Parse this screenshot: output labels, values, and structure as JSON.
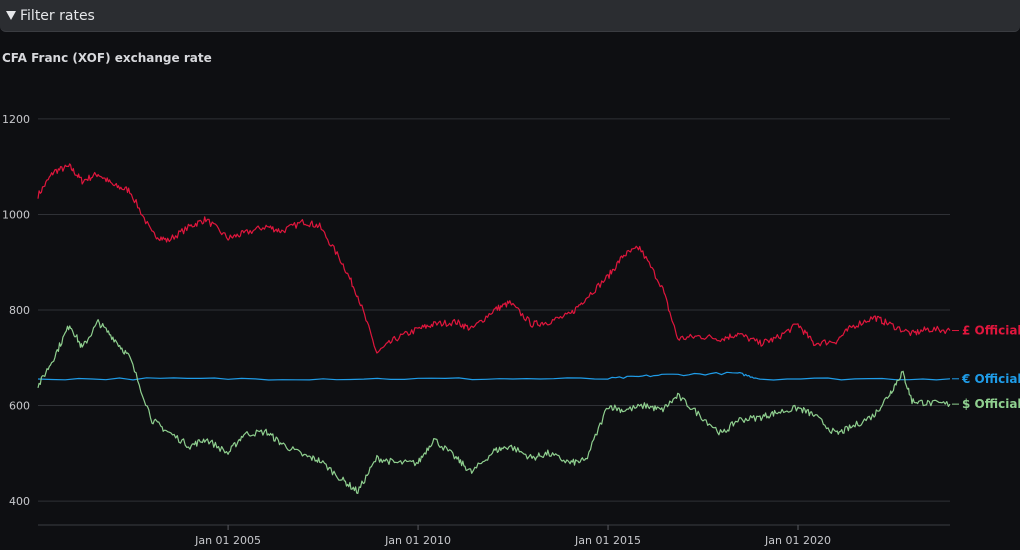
{
  "filter": {
    "label": "Filter rates"
  },
  "chart_data": {
    "type": "line",
    "title": "CFA Franc (XOF) exchange rate",
    "xlabel": "",
    "ylabel": "",
    "xlim": [
      "2000-01-01",
      "2024-01-01"
    ],
    "ylim": [
      350,
      1250
    ],
    "yticks": [
      400,
      600,
      800,
      1000,
      1200
    ],
    "xticks": [
      {
        "date": "2005-01-01",
        "label": "Jan 01 2005"
      },
      {
        "date": "2010-01-01",
        "label": "Jan 01 2010"
      },
      {
        "date": "2015-01-01",
        "label": "Jan 01 2015"
      },
      {
        "date": "2020-01-01",
        "label": "Jan 01 2020"
      }
    ],
    "grid": "horizontal",
    "legend": "end-of-line labels",
    "series": [
      {
        "name": "£ Official",
        "color": "#e0163d",
        "points": [
          [
            "2000-01-01",
            1040
          ],
          [
            "2000-06-01",
            1090
          ],
          [
            "2000-11-01",
            1100
          ],
          [
            "2001-03-01",
            1070
          ],
          [
            "2001-08-01",
            1085
          ],
          [
            "2002-01-01",
            1060
          ],
          [
            "2002-06-01",
            1050
          ],
          [
            "2003-01-01",
            960
          ],
          [
            "2003-06-01",
            945
          ],
          [
            "2004-01-01",
            975
          ],
          [
            "2004-06-01",
            990
          ],
          [
            "2005-01-01",
            950
          ],
          [
            "2005-06-01",
            960
          ],
          [
            "2006-01-01",
            975
          ],
          [
            "2006-06-01",
            965
          ],
          [
            "2007-01-01",
            985
          ],
          [
            "2007-06-01",
            975
          ],
          [
            "2008-01-01",
            900
          ],
          [
            "2008-06-01",
            830
          ],
          [
            "2008-12-01",
            710
          ],
          [
            "2009-06-01",
            740
          ],
          [
            "2010-01-01",
            760
          ],
          [
            "2010-06-01",
            770
          ],
          [
            "2011-01-01",
            775
          ],
          [
            "2011-06-01",
            760
          ],
          [
            "2012-01-01",
            800
          ],
          [
            "2012-06-01",
            815
          ],
          [
            "2013-01-01",
            770
          ],
          [
            "2013-06-01",
            775
          ],
          [
            "2014-01-01",
            790
          ],
          [
            "2014-06-01",
            825
          ],
          [
            "2015-01-01",
            870
          ],
          [
            "2015-06-01",
            915
          ],
          [
            "2015-11-01",
            930
          ],
          [
            "2016-06-01",
            850
          ],
          [
            "2016-11-01",
            740
          ],
          [
            "2017-06-01",
            745
          ],
          [
            "2018-01-01",
            740
          ],
          [
            "2018-06-01",
            750
          ],
          [
            "2019-01-01",
            730
          ],
          [
            "2019-06-01",
            740
          ],
          [
            "2020-01-01",
            770
          ],
          [
            "2020-06-01",
            730
          ],
          [
            "2021-01-01",
            735
          ],
          [
            "2021-06-01",
            765
          ],
          [
            "2022-01-01",
            785
          ],
          [
            "2022-06-01",
            770
          ],
          [
            "2023-01-01",
            750
          ],
          [
            "2023-06-01",
            760
          ],
          [
            "2024-01-01",
            757
          ]
        ]
      },
      {
        "name": "€ Official",
        "color": "#1f9ce8",
        "points": [
          [
            "2000-01-01",
            656
          ],
          [
            "2005-01-01",
            656
          ],
          [
            "2010-01-01",
            656
          ],
          [
            "2015-01-01",
            656
          ],
          [
            "2016-06-01",
            664
          ],
          [
            "2018-06-01",
            668
          ],
          [
            "2019-01-01",
            656
          ],
          [
            "2024-01-01",
            656
          ]
        ]
      },
      {
        "name": "$ Official",
        "color": "#8fcf8f",
        "points": [
          [
            "2000-01-01",
            640
          ],
          [
            "2000-06-01",
            700
          ],
          [
            "2000-11-01",
            770
          ],
          [
            "2001-03-01",
            720
          ],
          [
            "2001-08-01",
            775
          ],
          [
            "2002-01-01",
            740
          ],
          [
            "2002-06-01",
            700
          ],
          [
            "2003-01-01",
            570
          ],
          [
            "2003-06-01",
            545
          ],
          [
            "2004-01-01",
            515
          ],
          [
            "2004-06-01",
            530
          ],
          [
            "2005-01-01",
            500
          ],
          [
            "2005-06-01",
            540
          ],
          [
            "2006-01-01",
            545
          ],
          [
            "2006-06-01",
            520
          ],
          [
            "2007-01-01",
            495
          ],
          [
            "2007-06-01",
            485
          ],
          [
            "2008-01-01",
            445
          ],
          [
            "2008-06-01",
            420
          ],
          [
            "2008-12-01",
            490
          ],
          [
            "2009-06-01",
            480
          ],
          [
            "2010-01-01",
            480
          ],
          [
            "2010-06-01",
            530
          ],
          [
            "2011-01-01",
            490
          ],
          [
            "2011-06-01",
            460
          ],
          [
            "2012-01-01",
            505
          ],
          [
            "2012-06-01",
            515
          ],
          [
            "2013-01-01",
            490
          ],
          [
            "2013-06-01",
            500
          ],
          [
            "2014-01-01",
            480
          ],
          [
            "2014-06-01",
            485
          ],
          [
            "2015-01-01",
            600
          ],
          [
            "2015-06-01",
            590
          ],
          [
            "2016-01-01",
            600
          ],
          [
            "2016-06-01",
            590
          ],
          [
            "2016-11-01",
            620
          ],
          [
            "2017-06-01",
            580
          ],
          [
            "2018-01-01",
            540
          ],
          [
            "2018-06-01",
            570
          ],
          [
            "2019-01-01",
            575
          ],
          [
            "2019-06-01",
            585
          ],
          [
            "2020-01-01",
            595
          ],
          [
            "2020-06-01",
            580
          ],
          [
            "2021-01-01",
            540
          ],
          [
            "2021-06-01",
            555
          ],
          [
            "2022-01-01",
            580
          ],
          [
            "2022-06-01",
            625
          ],
          [
            "2022-10-01",
            670
          ],
          [
            "2023-01-01",
            610
          ],
          [
            "2023-06-01",
            605
          ],
          [
            "2024-01-01",
            603
          ]
        ]
      }
    ]
  }
}
